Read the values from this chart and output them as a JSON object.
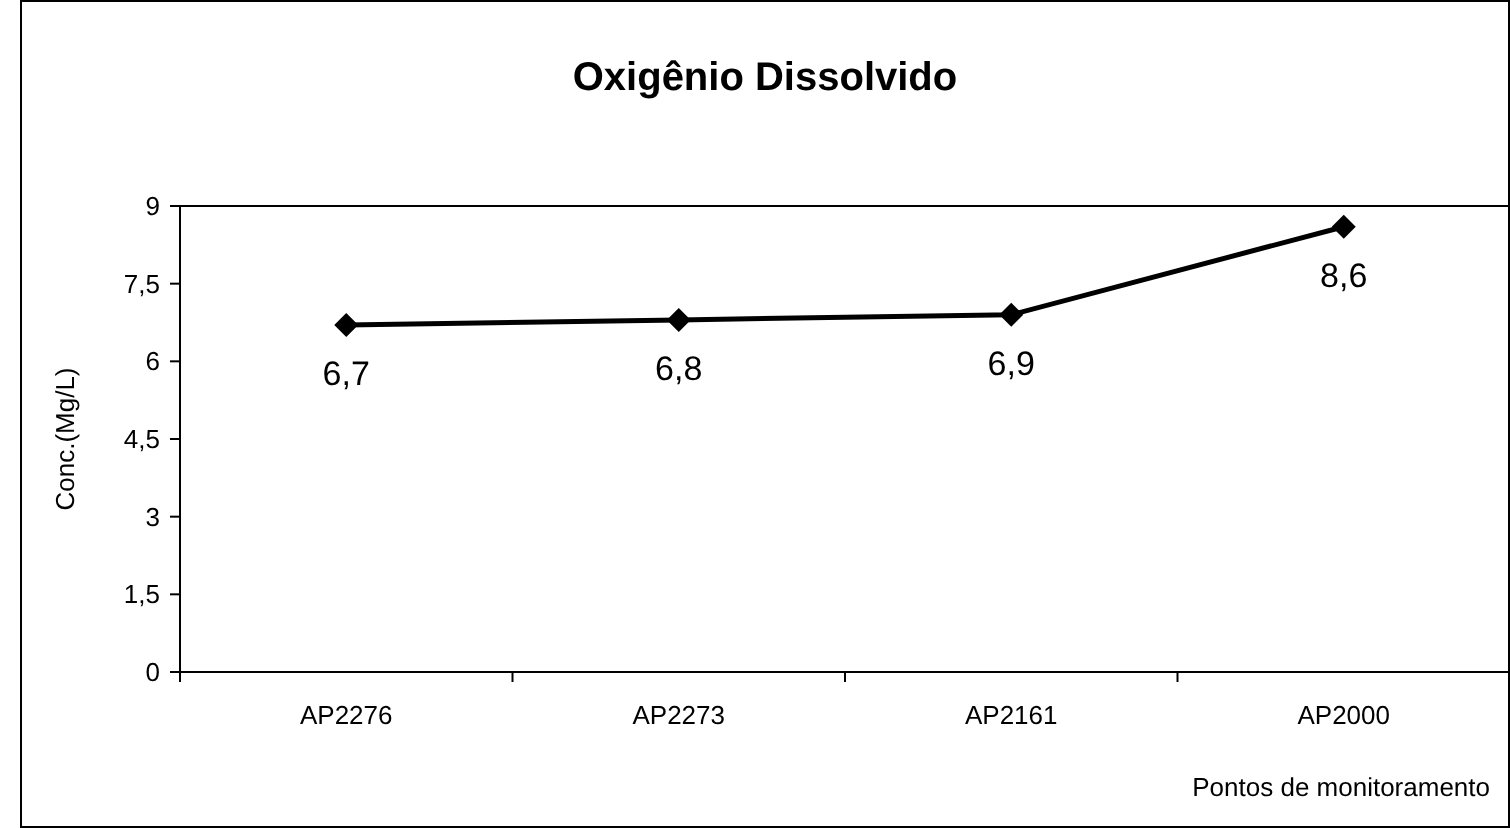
{
  "chart_data": {
    "type": "line",
    "title": "Oxigênio Dissolvido",
    "xlabel": "Pontos de monitoramento",
    "ylabel": "Conc.(Mg/L)",
    "categories": [
      "AP2276",
      "AP2273",
      "AP2161",
      "AP2000"
    ],
    "series": [
      {
        "color": "#000000",
        "values": [
          6.7,
          6.8,
          6.9,
          8.6
        ],
        "value_labels": [
          "6,7",
          "6,8",
          "6,9",
          "8,6"
        ]
      }
    ],
    "ylim": [
      0,
      9
    ],
    "yticks": [
      0,
      {
        "value": 1.5,
        "label": "1,5"
      },
      {
        "value": 3,
        "label": "3"
      },
      {
        "value": 4.5,
        "label": "4,5"
      },
      {
        "value": 6,
        "label": "6"
      },
      {
        "value": 7.5,
        "label": "7,5"
      },
      {
        "value": 9,
        "label": "9"
      }
    ],
    "marker": "diamond",
    "line_style": "solid",
    "grid": false
  }
}
